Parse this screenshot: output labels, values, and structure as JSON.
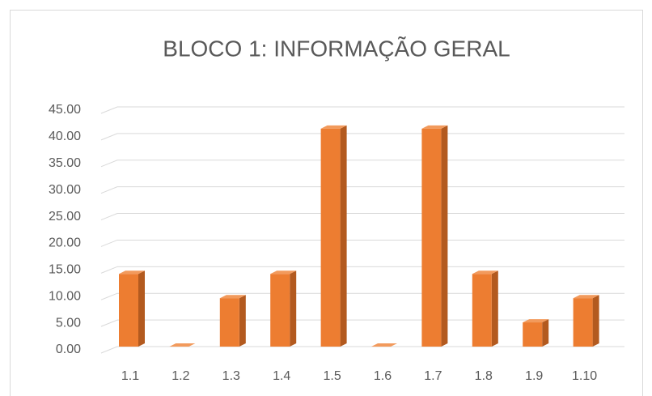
{
  "chart_data": {
    "type": "bar3d",
    "title": "BLOCO 1: INFORMAÇÃO GERAL",
    "categories": [
      "1.1",
      "1.2",
      "1.3",
      "1.4",
      "1.5",
      "1.6",
      "1.7",
      "1.8",
      "1.9",
      "1.10"
    ],
    "values": [
      13.64,
      0,
      9.09,
      13.64,
      40.91,
      0,
      40.91,
      13.64,
      4.55,
      9.09
    ],
    "color": "#ed7d31",
    "ylim": [
      0,
      45
    ],
    "yticks": [
      {
        "value": 0,
        "label": "0.00"
      },
      {
        "value": 5,
        "label": "5.00"
      },
      {
        "value": 10,
        "label": "10.00"
      },
      {
        "value": 15,
        "label": "15.00"
      },
      {
        "value": 20,
        "label": "20.00"
      },
      {
        "value": 25,
        "label": "25.00"
      },
      {
        "value": 30,
        "label": "30.00"
      },
      {
        "value": 35,
        "label": "35.00"
      },
      {
        "value": 40,
        "label": "40.00"
      },
      {
        "value": 45,
        "label": "45.00"
      }
    ],
    "grid": true
  }
}
